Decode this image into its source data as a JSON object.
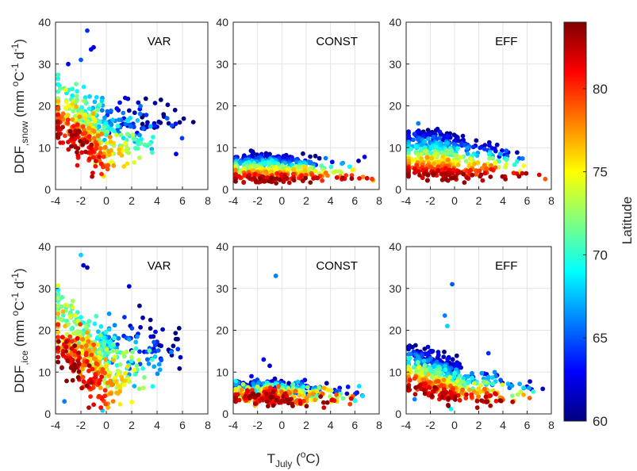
{
  "chart_data": {
    "type": "scatter",
    "layout": "2x3 grid of scatter panels sharing axes",
    "xlabel": {
      "main": "T",
      "sub": "July",
      "unit_open": " (",
      "unit_sup": "o",
      "unit_close": "C)"
    },
    "ylabel_row1": {
      "main": "DDF",
      "sub": ",snow",
      "unit": " (mm  ",
      "sup1": "o",
      "mid": "C",
      "sup2": "-1",
      "d": " d",
      "sup3": "-1",
      "close": ")"
    },
    "ylabel_row2": {
      "main": "DDF",
      "sub": ",ice",
      "unit": " (mm  ",
      "sup1": "o",
      "mid": "C",
      "sup2": "-1",
      "d": " d",
      "sup3": "-1",
      "close": ")"
    },
    "xlim": [
      -4,
      8
    ],
    "ylim": [
      0,
      40
    ],
    "xticks": [
      "-4",
      "-2",
      "0",
      "2",
      "4",
      "6",
      "8"
    ],
    "yticks": [
      "0",
      "10",
      "20",
      "30",
      "40"
    ],
    "grid": true,
    "colorbar": {
      "label": "Latitude",
      "range": [
        60,
        84
      ],
      "ticks": [
        "60",
        "65",
        "70",
        "75",
        "80"
      ],
      "colormap": "jet"
    },
    "panels": [
      {
        "title": "VAR",
        "row": 1,
        "col": 1,
        "pattern": "snow_var",
        "n": 520,
        "points": [
          [
            -1.5,
            38.0,
            64
          ],
          [
            -1.2,
            33.5,
            63
          ],
          [
            -1.0,
            34.0,
            62
          ],
          [
            -3.0,
            30.0,
            63
          ],
          [
            -2.0,
            31.0,
            65
          ],
          [
            4.0,
            15.0,
            62
          ],
          [
            3.0,
            14.5,
            63
          ],
          [
            5.5,
            8.5,
            63
          ]
        ]
      },
      {
        "title": "CONST",
        "row": 1,
        "col": 2,
        "pattern": "snow_const",
        "n": 520,
        "points": [
          [
            6.8,
            7.8,
            63
          ],
          [
            7.0,
            2.7,
            82
          ],
          [
            7.5,
            2.2,
            77
          ]
        ]
      },
      {
        "title": "EFF",
        "row": 1,
        "col": 3,
        "pattern": "snow_eff",
        "n": 520,
        "points": [
          [
            -3.0,
            15.8,
            66
          ],
          [
            7.0,
            3.5,
            82
          ],
          [
            7.5,
            2.5,
            79
          ]
        ]
      },
      {
        "title": "VAR",
        "row": 2,
        "col": 1,
        "pattern": "ice_var",
        "n": 560,
        "points": [
          [
            -3.5,
            11.0,
            62
          ],
          [
            -3.3,
            3.0,
            66
          ],
          [
            -1.8,
            35.5,
            62
          ],
          [
            -1.5,
            35.0,
            61
          ],
          [
            -2.0,
            38.0,
            68
          ],
          [
            -0.3,
            0.8,
            68
          ],
          [
            1.8,
            30.5,
            62
          ]
        ]
      },
      {
        "title": "CONST",
        "row": 2,
        "col": 2,
        "pattern": "ice_const",
        "n": 560,
        "points": [
          [
            -0.5,
            33.0,
            66
          ],
          [
            -1.5,
            13.0,
            63
          ],
          [
            -1.0,
            11.5,
            62
          ],
          [
            -2.5,
            9.0,
            63
          ]
        ]
      },
      {
        "title": "EFF",
        "row": 2,
        "col": 3,
        "pattern": "ice_eff",
        "n": 560,
        "points": [
          [
            -0.2,
            31.0,
            65
          ],
          [
            -0.8,
            23.5,
            66
          ],
          [
            -0.6,
            21.0,
            68
          ],
          [
            -2.2,
            16.0,
            62
          ],
          [
            -1.8,
            15.0,
            62
          ],
          [
            -3.3,
            3.5,
            66
          ],
          [
            -0.3,
            1.2,
            69
          ],
          [
            2.8,
            14.5,
            64
          ]
        ]
      }
    ]
  }
}
